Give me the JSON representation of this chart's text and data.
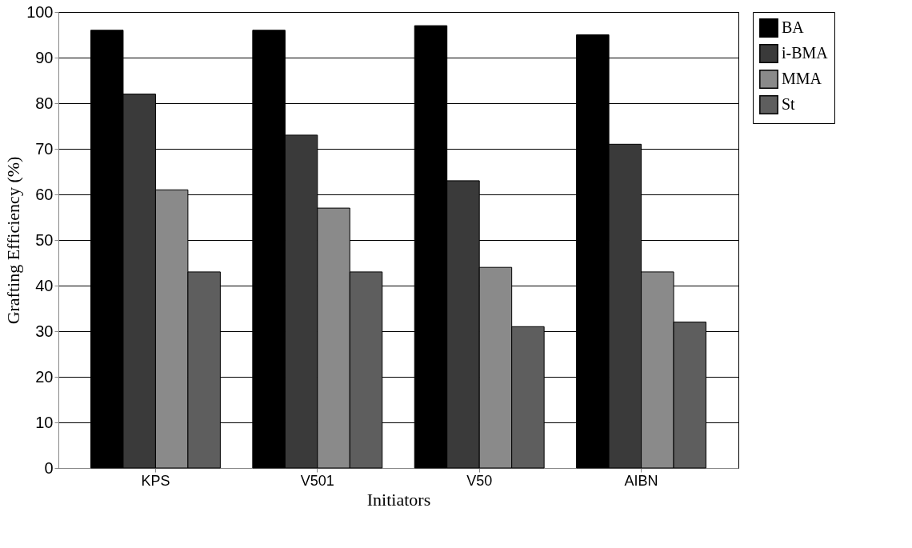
{
  "chart_data": {
    "type": "bar",
    "xlabel": "Initiators",
    "ylabel": "Grafting Efficiency (%)",
    "categories": [
      "KPS",
      "V501",
      "V50",
      "AIBN"
    ],
    "series": [
      {
        "name": "BA",
        "color": "#000000",
        "values": [
          96,
          96,
          97,
          95
        ]
      },
      {
        "name": "i-BMA",
        "color": "#3a3a3a",
        "values": [
          82,
          73,
          63,
          71
        ]
      },
      {
        "name": "MMA",
        "color": "#8a8a8a",
        "values": [
          61,
          57,
          44,
          43
        ]
      },
      {
        "name": "St",
        "color": "#5e5e5e",
        "values": [
          43,
          43,
          31,
          32
        ]
      }
    ],
    "ylim": [
      0,
      100
    ],
    "yticks": [
      0,
      10,
      20,
      30,
      40,
      50,
      60,
      70,
      80,
      90,
      100
    ],
    "grid": "y",
    "legend": "top right"
  }
}
